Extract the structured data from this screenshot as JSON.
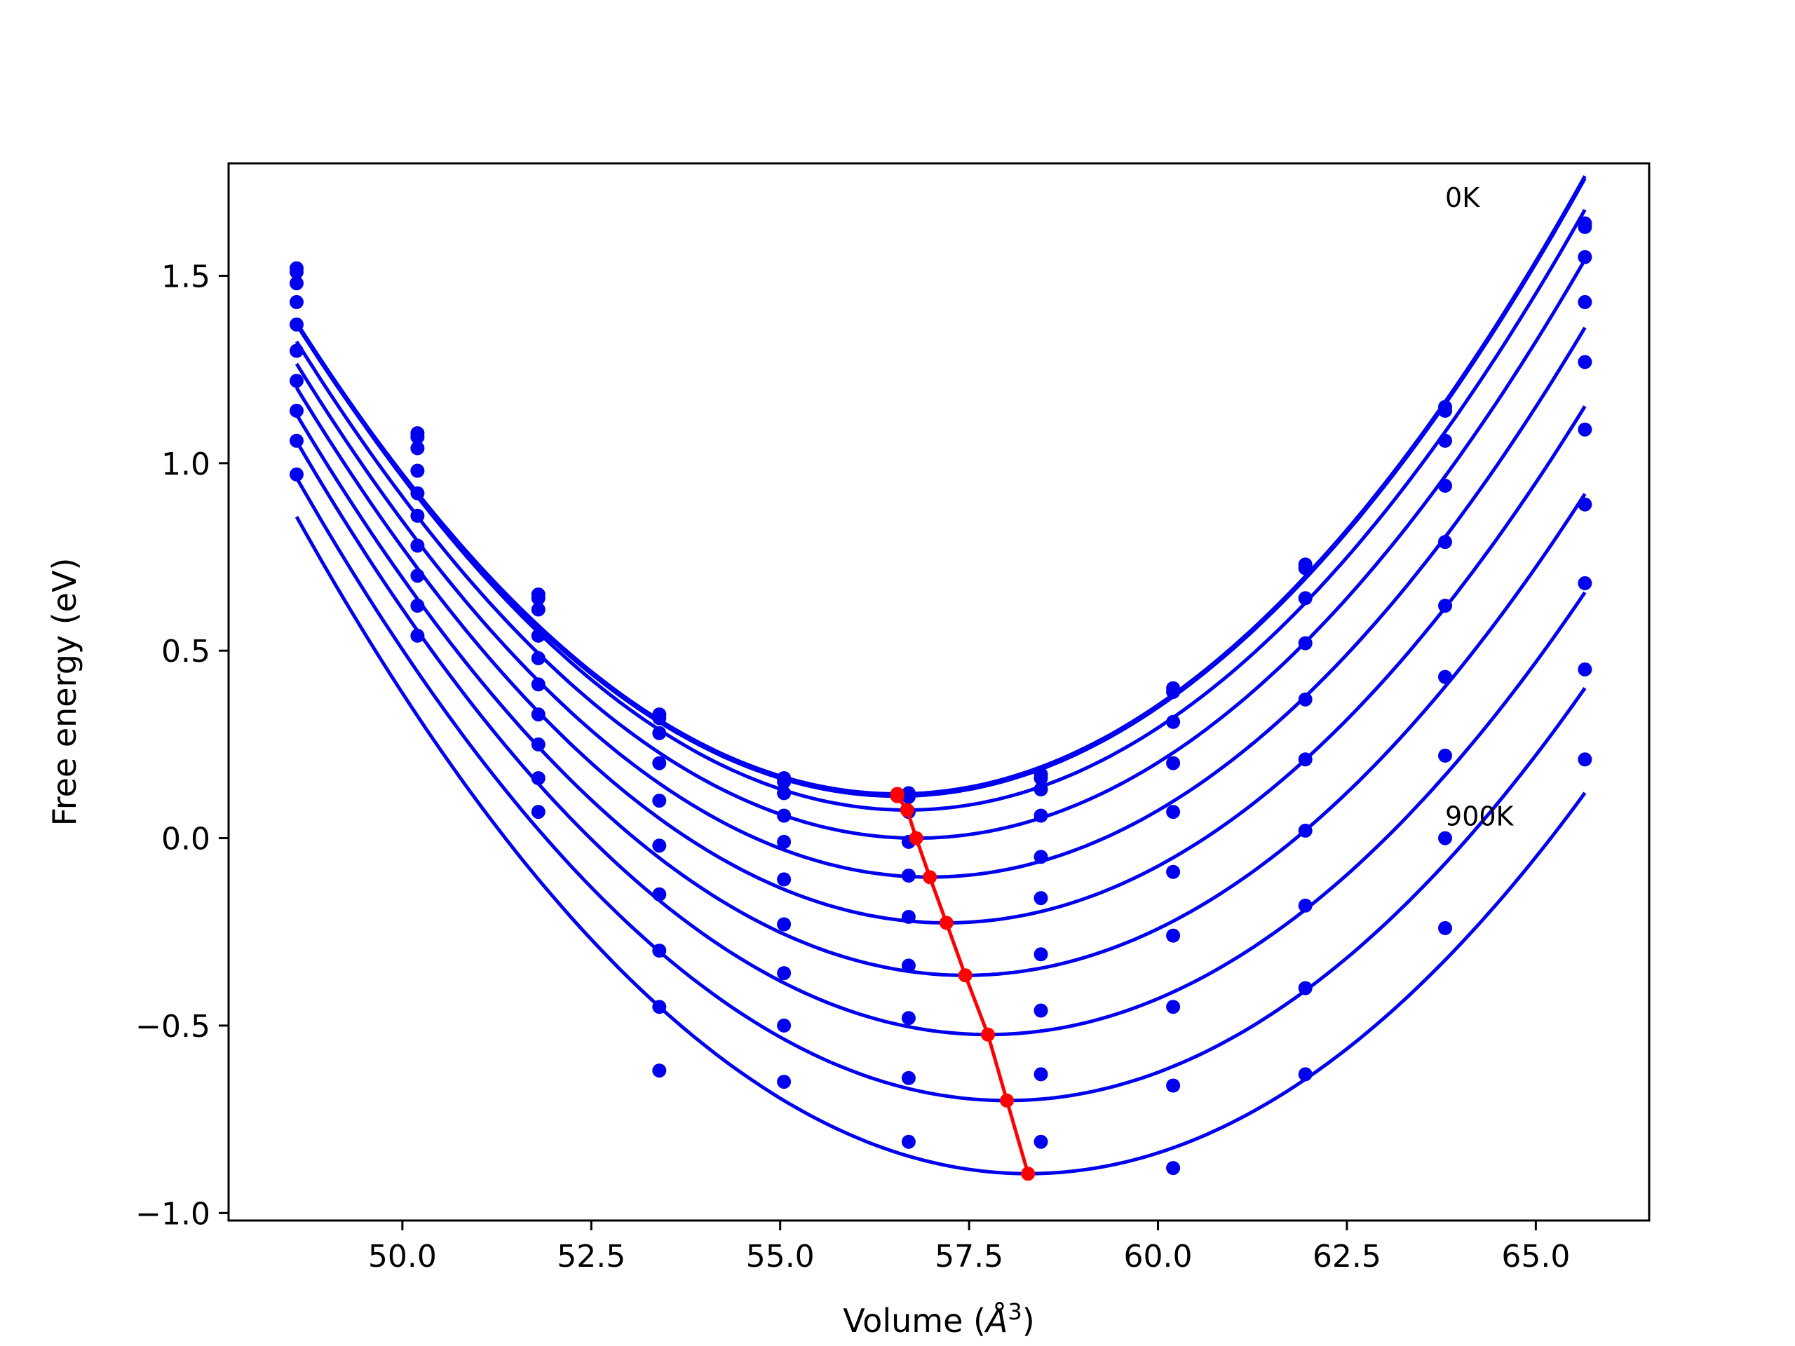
{
  "chart_data": {
    "type": "line",
    "xlabel": "Volume (",
    "xlabel_symbol": "Å",
    "xlabel_sup": "3",
    "xlabel_close": ")",
    "ylabel": "Free energy (eV)",
    "xlim": [
      47.7,
      66.5
    ],
    "ylim": [
      -1.02,
      1.8
    ],
    "x_ticks": [
      50.0,
      52.5,
      55.0,
      57.5,
      60.0,
      62.5,
      65.0
    ],
    "x_tick_labels": [
      "50.0",
      "52.5",
      "55.0",
      "57.5",
      "60.0",
      "62.5",
      "65.0"
    ],
    "y_ticks": [
      1.5,
      1.0,
      0.5,
      0.0,
      -0.5,
      -1.0
    ],
    "y_tick_labels": [
      "1.5",
      "1.0",
      "0.5",
      "0.0",
      "−0.5",
      "−1.0"
    ],
    "grid": false,
    "legend": "none",
    "colors": {
      "curves": "#0000ee",
      "minima": "#ff0000"
    },
    "annotations": [
      {
        "text": "0K",
        "x": 63.8,
        "y": 1.71
      },
      {
        "text": "900K",
        "x": 63.8,
        "y": 0.06
      }
    ],
    "curve_x_range": [
      48.6,
      65.65
    ],
    "volumes": [
      48.6,
      50.2,
      51.8,
      53.4,
      55.05,
      56.7,
      58.45,
      60.2,
      61.95,
      63.8,
      65.65
    ],
    "series": [
      {
        "values": [
          1.52,
          1.08,
          0.65,
          0.33,
          0.16,
          0.12,
          0.17,
          0.4,
          0.73,
          1.15,
          1.64
        ]
      },
      {
        "values": [
          1.51,
          1.07,
          0.64,
          0.32,
          0.15,
          0.11,
          0.16,
          0.39,
          0.72,
          1.14,
          1.63
        ]
      },
      {
        "values": [
          1.48,
          1.04,
          0.61,
          0.28,
          0.12,
          0.07,
          0.13,
          0.31,
          0.64,
          1.06,
          1.55
        ]
      },
      {
        "values": [
          1.43,
          0.98,
          0.54,
          0.2,
          0.06,
          -0.01,
          0.06,
          0.2,
          0.52,
          0.94,
          1.43
        ]
      },
      {
        "values": [
          1.37,
          0.92,
          0.48,
          0.1,
          -0.01,
          -0.1,
          -0.05,
          0.07,
          0.37,
          0.79,
          1.27
        ]
      },
      {
        "values": [
          1.3,
          0.86,
          0.41,
          -0.02,
          -0.11,
          -0.21,
          -0.16,
          -0.09,
          0.21,
          0.62,
          1.09
        ]
      },
      {
        "values": [
          1.22,
          0.78,
          0.33,
          -0.15,
          -0.23,
          -0.34,
          -0.31,
          -0.26,
          0.02,
          0.43,
          0.89
        ]
      },
      {
        "values": [
          1.14,
          0.7,
          0.25,
          -0.3,
          -0.36,
          -0.48,
          -0.46,
          -0.45,
          -0.18,
          0.22,
          0.68
        ]
      },
      {
        "values": [
          1.06,
          0.62,
          0.16,
          -0.45,
          -0.5,
          -0.64,
          -0.63,
          -0.66,
          -0.4,
          0.0,
          0.45
        ]
      },
      {
        "values": [
          0.97,
          0.54,
          0.07,
          -0.62,
          -0.65,
          -0.81,
          -0.81,
          -0.88,
          -0.63,
          -0.24,
          0.21
        ]
      }
    ],
    "fitted_curves": [
      {
        "a": 0.0199,
        "v0": 56.55,
        "f0": 0.118
      },
      {
        "a": 0.0199,
        "v0": 56.55,
        "f0": 0.112
      },
      {
        "a": 0.0199,
        "v0": 56.68,
        "f0": 0.075
      },
      {
        "a": 0.0197,
        "v0": 56.8,
        "f0": 0.0
      },
      {
        "a": 0.0195,
        "v0": 56.98,
        "f0": -0.104
      },
      {
        "a": 0.0193,
        "v0": 57.2,
        "f0": -0.226
      },
      {
        "a": 0.0191,
        "v0": 57.45,
        "f0": -0.366
      },
      {
        "a": 0.0189,
        "v0": 57.75,
        "f0": -0.524
      },
      {
        "a": 0.0188,
        "v0": 58.0,
        "f0": -0.7
      },
      {
        "a": 0.0187,
        "v0": 58.28,
        "f0": -0.895
      }
    ],
    "minimum_path": {
      "x": [
        56.55,
        56.55,
        56.68,
        56.8,
        56.98,
        57.2,
        57.45,
        57.75,
        58.0,
        58.28
      ],
      "y": [
        0.118,
        0.112,
        0.075,
        0.0,
        -0.104,
        -0.226,
        -0.366,
        -0.524,
        -0.7,
        -0.895
      ]
    }
  }
}
